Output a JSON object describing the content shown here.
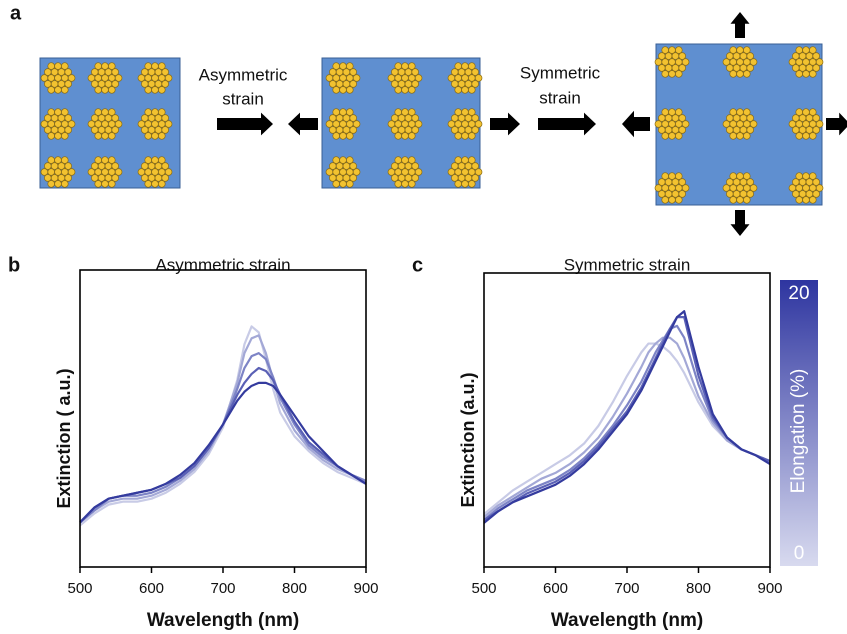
{
  "diagram": {
    "panel_label": "a",
    "asymmetric_label": [
      "Asymmetric",
      "strain"
    ],
    "symmetric_label": [
      "Symmetric",
      "strain"
    ]
  },
  "chart_data": [
    {
      "type": "line",
      "panel_label": "b",
      "title": "Asymmetric strain",
      "x_label": "Wavelength (nm)",
      "y_label": "Extinction ( a.u.)",
      "xlim": [
        500,
        900
      ],
      "xticks": [
        500,
        600,
        700,
        800,
        900
      ],
      "ylim": [
        0,
        1
      ],
      "x": [
        500,
        520,
        540,
        560,
        580,
        600,
        620,
        640,
        660,
        680,
        700,
        720,
        730,
        740,
        750,
        760,
        770,
        780,
        800,
        820,
        840,
        860,
        880,
        900
      ],
      "series": [
        {
          "color": "#c8cbe6",
          "values": [
            0.14,
            0.18,
            0.21,
            0.22,
            0.22,
            0.23,
            0.25,
            0.28,
            0.32,
            0.38,
            0.47,
            0.63,
            0.75,
            0.81,
            0.79,
            0.7,
            0.6,
            0.52,
            0.44,
            0.39,
            0.35,
            0.32,
            0.3,
            0.28
          ]
        },
        {
          "color": "#a3a8d6",
          "values": [
            0.15,
            0.19,
            0.22,
            0.23,
            0.23,
            0.24,
            0.26,
            0.29,
            0.33,
            0.39,
            0.48,
            0.62,
            0.72,
            0.77,
            0.78,
            0.72,
            0.63,
            0.55,
            0.46,
            0.4,
            0.36,
            0.33,
            0.31,
            0.29
          ]
        },
        {
          "color": "#7d84c6",
          "values": [
            0.15,
            0.19,
            0.23,
            0.24,
            0.24,
            0.25,
            0.27,
            0.3,
            0.34,
            0.4,
            0.48,
            0.6,
            0.67,
            0.71,
            0.72,
            0.7,
            0.64,
            0.57,
            0.48,
            0.41,
            0.37,
            0.34,
            0.31,
            0.29
          ]
        },
        {
          "color": "#5a60b5",
          "values": [
            0.15,
            0.2,
            0.23,
            0.24,
            0.25,
            0.26,
            0.28,
            0.3,
            0.34,
            0.4,
            0.48,
            0.58,
            0.62,
            0.65,
            0.67,
            0.66,
            0.63,
            0.58,
            0.49,
            0.42,
            0.38,
            0.34,
            0.31,
            0.28
          ]
        },
        {
          "color": "#343b9e",
          "values": [
            0.15,
            0.2,
            0.23,
            0.24,
            0.25,
            0.26,
            0.28,
            0.31,
            0.35,
            0.41,
            0.48,
            0.56,
            0.59,
            0.61,
            0.62,
            0.62,
            0.61,
            0.58,
            0.51,
            0.44,
            0.39,
            0.34,
            0.31,
            0.28
          ]
        }
      ]
    },
    {
      "type": "line",
      "panel_label": "c",
      "title": "Symmetric strain",
      "x_label": "Wavelength (nm)",
      "y_label": "Extinction (a.u.)",
      "xlim": [
        500,
        900
      ],
      "xticks": [
        500,
        600,
        700,
        800,
        900
      ],
      "ylim": [
        0,
        1
      ],
      "x": [
        500,
        520,
        540,
        560,
        580,
        600,
        620,
        640,
        660,
        680,
        700,
        720,
        730,
        740,
        750,
        760,
        770,
        780,
        800,
        820,
        840,
        860,
        880,
        900
      ],
      "series": [
        {
          "color": "#c8cbe6",
          "values": [
            0.18,
            0.22,
            0.26,
            0.29,
            0.32,
            0.35,
            0.38,
            0.42,
            0.48,
            0.56,
            0.65,
            0.73,
            0.76,
            0.76,
            0.75,
            0.73,
            0.7,
            0.66,
            0.56,
            0.48,
            0.43,
            0.4,
            0.38,
            0.36
          ]
        },
        {
          "color": "#a3a8d6",
          "values": [
            0.17,
            0.21,
            0.24,
            0.27,
            0.3,
            0.32,
            0.35,
            0.39,
            0.44,
            0.51,
            0.59,
            0.68,
            0.73,
            0.76,
            0.78,
            0.78,
            0.76,
            0.71,
            0.58,
            0.49,
            0.43,
            0.4,
            0.38,
            0.36
          ]
        },
        {
          "color": "#7d84c6",
          "values": [
            0.16,
            0.2,
            0.23,
            0.26,
            0.28,
            0.3,
            0.33,
            0.37,
            0.42,
            0.48,
            0.55,
            0.63,
            0.68,
            0.73,
            0.77,
            0.81,
            0.82,
            0.78,
            0.62,
            0.5,
            0.44,
            0.4,
            0.38,
            0.36
          ]
        },
        {
          "color": "#5a60b5",
          "values": [
            0.16,
            0.19,
            0.22,
            0.25,
            0.27,
            0.29,
            0.32,
            0.36,
            0.41,
            0.47,
            0.53,
            0.61,
            0.66,
            0.71,
            0.76,
            0.81,
            0.85,
            0.85,
            0.65,
            0.51,
            0.44,
            0.4,
            0.38,
            0.36
          ]
        },
        {
          "color": "#343b9e",
          "values": [
            0.15,
            0.19,
            0.22,
            0.24,
            0.26,
            0.28,
            0.31,
            0.35,
            0.4,
            0.46,
            0.52,
            0.6,
            0.65,
            0.7,
            0.75,
            0.8,
            0.85,
            0.87,
            0.68,
            0.52,
            0.44,
            0.4,
            0.38,
            0.35
          ]
        }
      ],
      "colorbar": {
        "label": "Elongation (%)",
        "lim": [
          0,
          20
        ],
        "ticks": [
          0,
          20
        ],
        "colors": [
          "#d8daef",
          "#2e35a0"
        ]
      }
    }
  ]
}
